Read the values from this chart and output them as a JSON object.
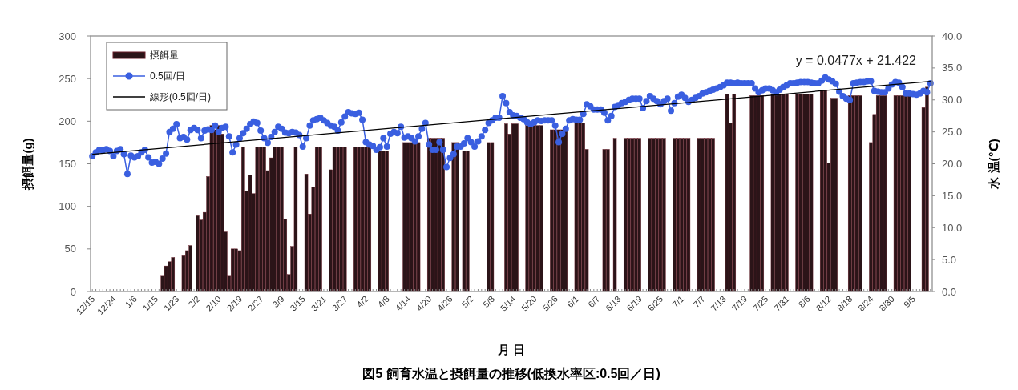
{
  "chart_data": {
    "type": "bar",
    "title": "図5 飼育水温と摂餌量の推移(低換水率区:0.5回／日)",
    "xlabel": "月 日",
    "ylabel": "摂餌量(g)",
    "y2label": "水 温(℃)",
    "annotations": [
      "y = 0.0477x + 21.422"
    ],
    "categories": [
      "12/15",
      null,
      null,
      null,
      null,
      null,
      "12/24",
      null,
      null,
      null,
      null,
      null,
      "1/6",
      null,
      null,
      null,
      null,
      null,
      "1/15",
      null,
      null,
      null,
      null,
      null,
      "1/23",
      null,
      null,
      null,
      null,
      null,
      "2/2",
      null,
      null,
      null,
      null,
      null,
      "2/10",
      null,
      null,
      null,
      null,
      null,
      "2/19",
      null,
      null,
      null,
      null,
      null,
      "2/27",
      null,
      null,
      null,
      null,
      null,
      "3/9",
      null,
      null,
      null,
      null,
      null,
      "3/15",
      null,
      null,
      null,
      null,
      null,
      "3/21",
      null,
      null,
      null,
      null,
      null,
      "3/27",
      null,
      null,
      null,
      null,
      null,
      "4/2",
      null,
      null,
      null,
      null,
      null,
      "4/8",
      null,
      null,
      null,
      null,
      null,
      "4/14",
      null,
      null,
      null,
      null,
      null,
      "4/20",
      null,
      null,
      null,
      null,
      null,
      "4/26",
      null,
      null,
      null,
      null,
      null,
      "5/2",
      null,
      null,
      null,
      null,
      null,
      "5/8",
      null,
      null,
      null,
      null,
      null,
      "5/14",
      null,
      null,
      null,
      null,
      null,
      "5/20",
      null,
      null,
      null,
      null,
      null,
      "5/26",
      null,
      null,
      null,
      null,
      null,
      "6/1",
      null,
      null,
      null,
      null,
      null,
      "6/7",
      null,
      null,
      null,
      null,
      null,
      "6/13",
      null,
      null,
      null,
      null,
      null,
      "6/19",
      null,
      null,
      null,
      null,
      null,
      "6/25",
      null,
      null,
      null,
      null,
      null,
      "7/1",
      null,
      null,
      null,
      null,
      null,
      "7/7",
      null,
      null,
      null,
      null,
      null,
      "7/13",
      null,
      null,
      null,
      null,
      null,
      "7/19",
      null,
      null,
      null,
      null,
      null,
      "7/25",
      null,
      null,
      null,
      null,
      null,
      "7/31",
      null,
      null,
      null,
      null,
      null,
      "8/6",
      null,
      null,
      null,
      null,
      null,
      "8/12",
      null,
      null,
      null,
      null,
      null,
      "8/18",
      null,
      null,
      null,
      null,
      null,
      "8/24",
      null,
      null,
      null,
      null,
      null,
      "8/30",
      null,
      null,
      null,
      null,
      null,
      "9/5",
      null,
      null,
      null,
      null,
      null
    ],
    "series": [
      {
        "name": "摂餌量",
        "color": "#2b1418",
        "values": [
          0,
          0,
          0,
          0,
          0,
          0,
          0,
          0,
          0,
          0,
          0,
          0,
          0,
          0,
          0,
          0,
          0,
          0,
          0,
          0,
          18,
          30,
          35,
          40,
          0,
          0,
          42,
          48,
          54,
          0,
          89,
          84,
          93,
          135,
          195,
          190,
          195,
          185,
          70,
          18,
          50,
          50,
          48,
          170,
          118,
          137,
          115,
          170,
          170,
          170,
          142,
          157,
          170,
          170,
          170,
          85,
          20,
          53,
          170,
          0,
          0,
          138,
          91,
          123,
          170,
          170,
          0,
          0,
          143,
          170,
          170,
          170,
          170,
          0,
          0,
          170,
          170,
          170,
          170,
          170,
          0,
          0,
          165,
          165,
          165,
          0,
          0,
          0,
          0,
          175,
          175,
          175,
          175,
          175,
          0,
          0,
          180,
          180,
          180,
          180,
          180,
          0,
          0,
          175,
          175,
          0,
          165,
          165,
          0,
          0,
          0,
          0,
          0,
          175,
          175,
          0,
          0,
          0,
          197,
          185,
          197,
          197,
          0,
          0,
          195,
          195,
          195,
          195,
          195,
          0,
          0,
          190,
          190,
          190,
          190,
          190,
          0,
          0,
          198,
          198,
          198,
          167,
          0,
          0,
          0,
          0,
          167,
          167,
          0,
          180,
          0,
          0,
          180,
          180,
          180,
          180,
          180,
          0,
          0,
          180,
          180,
          180,
          180,
          180,
          0,
          0,
          180,
          180,
          180,
          180,
          180,
          0,
          0,
          180,
          180,
          180,
          180,
          180,
          0,
          0,
          0,
          232,
          198,
          232,
          0,
          0,
          0,
          0,
          230,
          230,
          230,
          230,
          0,
          0,
          232,
          232,
          232,
          232,
          232,
          0,
          0,
          232,
          232,
          232,
          232,
          232,
          0,
          0,
          236,
          236,
          151,
          227,
          227,
          0,
          0,
          0,
          230,
          230,
          230,
          230,
          0,
          0,
          175,
          208,
          230,
          230,
          230,
          0,
          0,
          230,
          230,
          230,
          230,
          230,
          0,
          0,
          0,
          216,
          240,
          0
        ]
      },
      {
        "name": "0.5回/日",
        "type": "line",
        "axis": "y2",
        "color": "#3a5fe0",
        "marker": "circle",
        "values": [
          21.2,
          21.8,
          22.2,
          22.1,
          22.3,
          22.0,
          21.2,
          22.0,
          22.3,
          21.5,
          18.4,
          21.3,
          21.0,
          21.2,
          21.8,
          22.2,
          21.0,
          20.2,
          20.3,
          20.0,
          20.8,
          21.6,
          25.0,
          25.5,
          26.2,
          24.0,
          24.2,
          23.8,
          25.3,
          25.6,
          25.3,
          24.0,
          25.2,
          25.4,
          25.3,
          26.0,
          25.0,
          25.6,
          25.8,
          24.3,
          21.8,
          23.0,
          24.0,
          24.8,
          25.5,
          26.2,
          26.6,
          26.4,
          25.2,
          24.0,
          23.3,
          24.2,
          25.0,
          25.8,
          25.5,
          24.9,
          24.8,
          25.0,
          24.9,
          24.5,
          22.7,
          24.0,
          26.0,
          26.8,
          27.0,
          27.2,
          26.8,
          26.4,
          26.0,
          25.8,
          25.2,
          26.5,
          27.4,
          28.1,
          27.9,
          27.8,
          28.0,
          26.9,
          23.4,
          23.0,
          22.8,
          22.2,
          22.6,
          24.0,
          22.7,
          24.7,
          25.0,
          24.8,
          25.8,
          24.1,
          24.3,
          24.0,
          23.5,
          24.3,
          25.5,
          26.4,
          23.0,
          22.2,
          22.2,
          23.4,
          22.2,
          19.5,
          20.9,
          21.5,
          22.7,
          22.7,
          23.2,
          24.0,
          23.4,
          22.7,
          23.5,
          24.3,
          25.3,
          26.4,
          26.8,
          27.2,
          27.2,
          30.6,
          29.5,
          28.1,
          27.6,
          27.5,
          27.2,
          27.0,
          26.5,
          26.2,
          26.5,
          26.8,
          26.7,
          26.8,
          26.8,
          26.8,
          26.0,
          23.4,
          24.7,
          25.5,
          26.8,
          27.0,
          26.9,
          26.9,
          27.8,
          29.3,
          29.0,
          28.5,
          28.5,
          28.5,
          28.0,
          26.8,
          27.5,
          28.9,
          29.2,
          29.5,
          29.7,
          30.0,
          30.2,
          30.2,
          30.2,
          28.7,
          29.8,
          30.6,
          30.2,
          29.8,
          29.3,
          29.8,
          30.2,
          28.3,
          29.5,
          30.5,
          30.8,
          30.3,
          29.7,
          30.0,
          30.3,
          30.6,
          31.0,
          31.2,
          31.4,
          31.6,
          31.8,
          32.0,
          32.3,
          32.7,
          32.7,
          32.6,
          32.7,
          32.6,
          32.6,
          32.6,
          32.6,
          31.8,
          31.2,
          31.5,
          31.8,
          31.8,
          31.5,
          31.2,
          31.6,
          32.0,
          32.3,
          32.6,
          32.6,
          32.7,
          32.8,
          32.8,
          32.8,
          32.7,
          32.6,
          32.6,
          33.0,
          33.5,
          33.2,
          32.9,
          32.5,
          31.3,
          30.6,
          30.2,
          30.0,
          32.6,
          32.7,
          32.8,
          32.8,
          32.9,
          32.9,
          31.4,
          31.3,
          31.2,
          31.2,
          31.8,
          32.4,
          32.8,
          32.7,
          32.0,
          31.0,
          31.0,
          30.9,
          30.8,
          31.0,
          31.4,
          31.2,
          32.6
        ]
      },
      {
        "name": "線形(0.5回/日)",
        "type": "line",
        "axis": "y2",
        "color": "#000000",
        "marker": "none",
        "values": [
          21.5,
          null,
          null,
          null,
          null,
          null,
          null,
          null,
          null,
          null,
          null,
          null,
          null,
          null,
          null,
          null,
          null,
          null,
          null,
          null,
          null,
          null,
          null,
          null,
          null,
          null,
          null,
          null,
          null,
          null,
          null,
          null,
          null,
          null,
          null,
          null,
          null,
          null,
          null,
          null,
          null,
          null,
          null,
          null,
          null,
          null,
          null,
          null,
          null,
          null,
          null,
          null,
          null,
          null,
          null,
          null,
          null,
          null,
          null,
          null,
          null,
          null,
          null,
          null,
          null,
          null,
          null,
          null,
          null,
          null,
          null,
          null,
          null,
          null,
          null,
          null,
          null,
          null,
          null,
          null,
          null,
          null,
          null,
          null,
          null,
          null,
          null,
          null,
          null,
          null,
          null,
          null,
          null,
          null,
          null,
          null,
          null,
          null,
          null,
          null,
          null,
          null,
          null,
          null,
          null,
          null,
          null,
          null,
          null,
          null,
          null,
          null,
          null,
          null,
          null,
          null,
          null,
          null,
          null,
          null,
          null,
          null,
          null,
          null,
          null,
          null,
          null,
          null,
          null,
          null,
          null,
          null,
          null,
          null,
          null,
          null,
          null,
          null,
          null,
          null,
          null,
          null,
          null,
          null,
          null,
          null,
          null,
          null,
          null,
          null,
          null,
          null,
          null,
          null,
          null,
          null,
          null,
          null,
          null,
          null,
          null,
          null,
          null,
          null,
          null,
          null,
          null,
          null,
          null,
          null,
          null,
          null,
          null,
          null,
          null,
          null,
          null,
          null,
          null,
          null,
          null,
          null,
          null,
          null,
          null,
          null,
          null,
          null,
          null,
          null,
          null,
          null,
          null,
          null,
          null,
          null,
          null,
          null,
          null,
          null,
          null,
          null,
          null,
          null,
          null,
          null,
          null,
          null,
          null,
          null,
          null,
          null,
          null,
          null,
          null,
          null,
          null,
          null,
          null,
          null,
          null,
          null,
          null,
          null,
          null,
          null,
          null,
          null,
          null,
          null,
          null,
          null,
          null,
          null,
          null,
          null,
          null,
          null,
          null,
          32.9
        ]
      }
    ],
    "ylim": [
      0,
      300
    ],
    "yticks": [
      0,
      50,
      100,
      150,
      200,
      250,
      300
    ],
    "y2lim": [
      0,
      40
    ],
    "y2ticks": [
      {
        "value": 0,
        "label": "0.0"
      },
      {
        "value": 5,
        "label": "5.0"
      },
      {
        "value": 10,
        "label": "10.0"
      },
      {
        "value": 15,
        "label": "15.0"
      },
      {
        "value": 20,
        "label": "20.0"
      },
      {
        "value": 25,
        "label": "25.0"
      },
      {
        "value": 30,
        "label": "30.0"
      },
      {
        "value": 35,
        "label": "35.0"
      },
      {
        "value": 40,
        "label": "40.0"
      }
    ],
    "legend": "top left",
    "grid": false
  }
}
